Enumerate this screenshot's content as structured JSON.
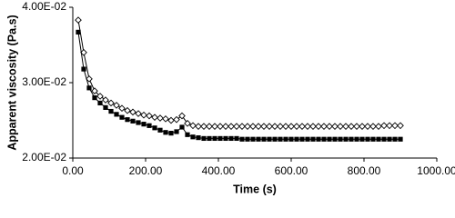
{
  "chart_data": {
    "type": "line",
    "x_label": "Time (s)",
    "y_label": "Apparent viscosity (Pa.s)",
    "x": [
      15,
      30,
      45,
      60,
      75,
      90,
      105,
      120,
      135,
      150,
      165,
      180,
      195,
      210,
      225,
      240,
      255,
      270,
      285,
      300,
      315,
      330,
      345,
      360,
      375,
      390,
      405,
      420,
      435,
      450,
      465,
      480,
      495,
      510,
      525,
      540,
      555,
      570,
      585,
      600,
      615,
      630,
      645,
      660,
      675,
      690,
      705,
      720,
      735,
      750,
      765,
      780,
      795,
      810,
      825,
      840,
      855,
      870,
      885,
      900
    ],
    "series": [
      {
        "color": "#000000",
        "marker": "diamond",
        "values": [
          0.0383,
          0.034,
          0.0305,
          0.0289,
          0.0282,
          0.0277,
          0.0273,
          0.027,
          0.0266,
          0.0263,
          0.0261,
          0.0259,
          0.0257,
          0.0256,
          0.0254,
          0.0253,
          0.0252,
          0.025,
          0.0251,
          0.0256,
          0.0246,
          0.0243,
          0.0242,
          0.0242,
          0.0242,
          0.0242,
          0.0242,
          0.0242,
          0.0242,
          0.0242,
          0.0242,
          0.0242,
          0.0242,
          0.0242,
          0.0242,
          0.0242,
          0.0242,
          0.0242,
          0.0242,
          0.0242,
          0.0242,
          0.0242,
          0.0242,
          0.0242,
          0.0242,
          0.0242,
          0.0242,
          0.0242,
          0.0242,
          0.0242,
          0.0242,
          0.0242,
          0.0242,
          0.0242,
          0.0242,
          0.0242,
          0.0243,
          0.0243,
          0.0243,
          0.0243
        ]
      },
      {
        "color": "#000000",
        "marker": "square",
        "values": [
          0.0367,
          0.0318,
          0.0293,
          0.028,
          0.0273,
          0.0267,
          0.0262,
          0.0258,
          0.0254,
          0.0251,
          0.0249,
          0.0247,
          0.0245,
          0.0243,
          0.024,
          0.0237,
          0.0234,
          0.0233,
          0.0235,
          0.0241,
          0.0231,
          0.0228,
          0.0227,
          0.0226,
          0.0226,
          0.0226,
          0.0226,
          0.0226,
          0.0226,
          0.0226,
          0.0225,
          0.0225,
          0.0225,
          0.0225,
          0.0225,
          0.0225,
          0.0225,
          0.0225,
          0.0225,
          0.0225,
          0.0225,
          0.0225,
          0.0225,
          0.0225,
          0.0225,
          0.0225,
          0.0225,
          0.0225,
          0.0225,
          0.0225,
          0.0225,
          0.0225,
          0.0225,
          0.0225,
          0.0225,
          0.0225,
          0.0225,
          0.0225,
          0.0225,
          0.0225
        ]
      }
    ],
    "xlim": [
      0,
      1000
    ],
    "xticks": [
      {
        "value": 0,
        "label": "0.00"
      },
      {
        "value": 200,
        "label": "200.00"
      },
      {
        "value": 400,
        "label": "400.00"
      },
      {
        "value": 600,
        "label": "600.00"
      },
      {
        "value": 800,
        "label": "800.00"
      },
      {
        "value": 1000,
        "label": "1000.00"
      }
    ],
    "ylim": [
      0.02,
      0.04
    ],
    "yticks": [
      {
        "value": 0.02,
        "label": "2.00E-02"
      },
      {
        "value": 0.03,
        "label": "3.00E-02"
      },
      {
        "value": 0.04,
        "label": "4.00E-02"
      }
    ],
    "grid": false
  }
}
